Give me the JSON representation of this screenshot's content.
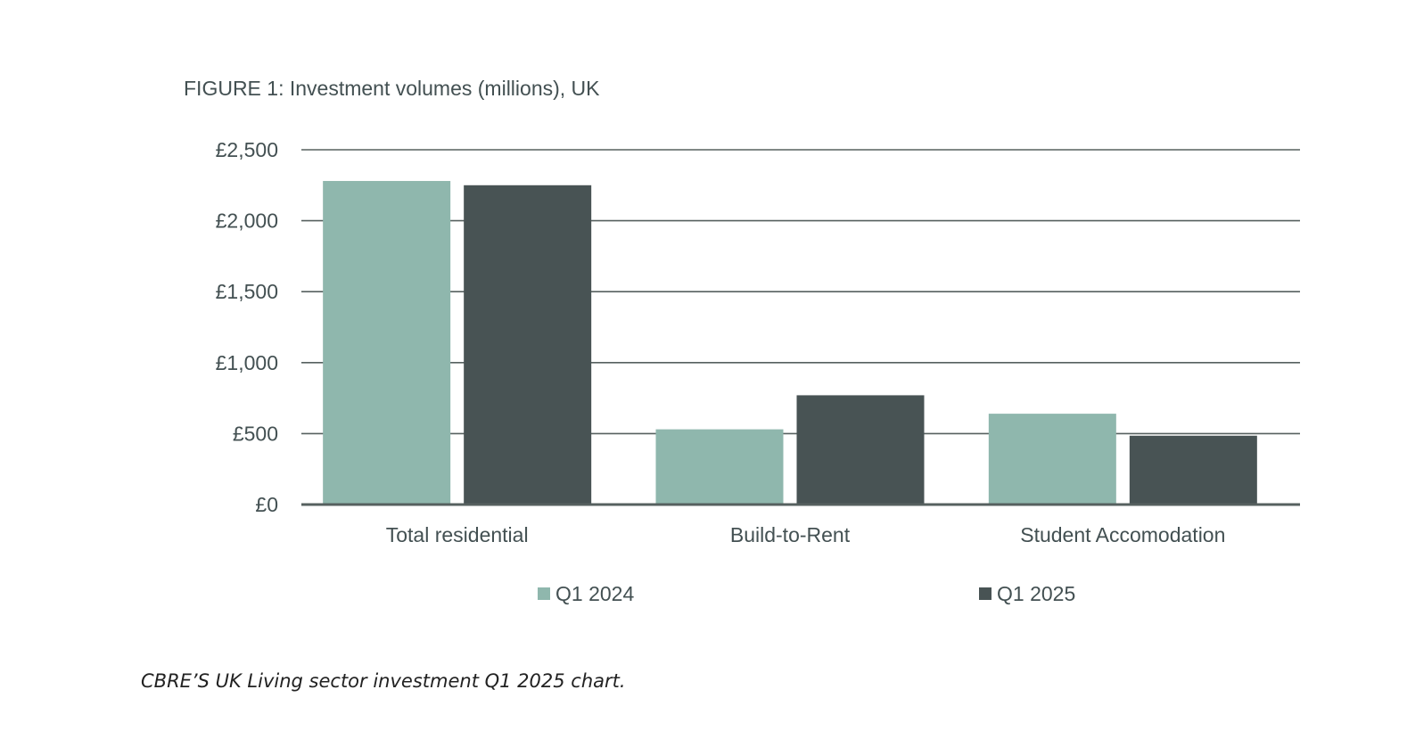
{
  "caption": "CBRE’S UK Living sector investment Q1 2025 chart.",
  "chart_data": {
    "type": "bar",
    "title": "FIGURE 1: Investment volumes (millions), UK",
    "xlabel": "",
    "ylabel": "",
    "categories": [
      "Total residential",
      "Build-to-Rent",
      "Student Accomodation"
    ],
    "series": [
      {
        "name": "Q1 2024",
        "color": "#8fb7ad",
        "values": [
          2280,
          530,
          640
        ]
      },
      {
        "name": "Q1 2025",
        "color": "#485354",
        "values": [
          2250,
          770,
          485
        ]
      }
    ],
    "ylim": [
      0,
      2500
    ],
    "yticks": [
      {
        "value": 0,
        "label": "£0"
      },
      {
        "value": 500,
        "label": "£500"
      },
      {
        "value": 1000,
        "label": "£1,000"
      },
      {
        "value": 1500,
        "label": "£1,500"
      },
      {
        "value": 2000,
        "label": "£2,000"
      },
      {
        "value": 2500,
        "label": "£2,500"
      }
    ],
    "grid": true,
    "legend_position": "bottom"
  }
}
